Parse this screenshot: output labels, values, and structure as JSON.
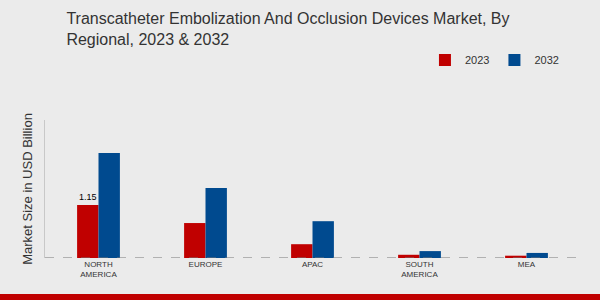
{
  "chart_data": {
    "type": "bar",
    "title": "Transcatheter Embolization And Occlusion Devices Market, By Regional, 2023 & 2032",
    "y_label": "Market Size in USD Billion",
    "categories": [
      "NORTH AMERICA",
      "EUROPE",
      "APAC",
      "SOUTH AMERICA",
      "MEA"
    ],
    "series": [
      {
        "name": "2023",
        "color": "#c00000",
        "values": [
          1.15,
          0.76,
          0.3,
          0.07,
          0.05
        ],
        "value_labels": [
          "1.15",
          null,
          null,
          null,
          null
        ]
      },
      {
        "name": "2032",
        "color": "#004a8f",
        "values": [
          2.28,
          1.52,
          0.8,
          0.15,
          0.11
        ]
      }
    ],
    "ylim": [
      0,
      3
    ],
    "tick_labels": "x",
    "grid": false,
    "legend": "top-right",
    "data_labels": true
  }
}
